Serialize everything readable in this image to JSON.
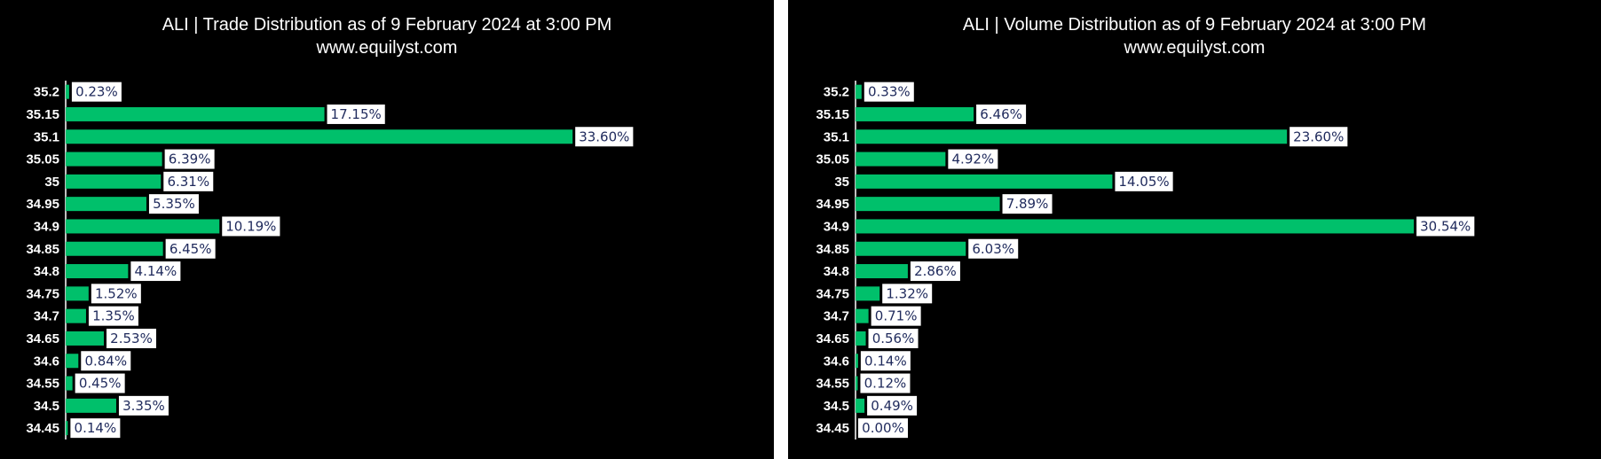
{
  "style": {
    "background": "#000000",
    "page_background": "#ffffff",
    "bar_color": "#00c06b",
    "axis_color": "#ffffff",
    "label_box": "#ffffff",
    "label_text": "#1f2a5c",
    "text_color": "#ffffff"
  },
  "chart_data": [
    {
      "type": "bar",
      "orientation": "horizontal",
      "title": "ALI | Trade Distribution as of 9 February 2024 at 3:00 PM",
      "subtitle": "www.equilyst.com",
      "categories": [
        "35.2",
        "35.15",
        "35.1",
        "35.05",
        "35",
        "34.95",
        "34.9",
        "34.85",
        "34.8",
        "34.75",
        "34.7",
        "34.65",
        "34.6",
        "34.55",
        "34.5",
        "34.45"
      ],
      "values": [
        0.23,
        17.15,
        33.6,
        6.39,
        6.31,
        5.35,
        10.19,
        6.45,
        4.14,
        1.52,
        1.35,
        2.53,
        0.84,
        0.45,
        3.35,
        0.14
      ],
      "value_labels": [
        "0.23%",
        "17.15%",
        "33.60%",
        "6.39%",
        "6.31%",
        "5.35%",
        "10.19%",
        "6.45%",
        "4.14%",
        "1.52%",
        "1.35%",
        "2.53%",
        "0.84%",
        "0.45%",
        "3.35%",
        "0.14%"
      ],
      "grid": false,
      "legend": "none"
    },
    {
      "type": "bar",
      "orientation": "horizontal",
      "title": "ALI | Volume Distribution as of 9 February 2024 at 3:00 PM",
      "subtitle": "www.equilyst.com",
      "categories": [
        "35.2",
        "35.15",
        "35.1",
        "35.05",
        "35",
        "34.95",
        "34.9",
        "34.85",
        "34.8",
        "34.75",
        "34.7",
        "34.65",
        "34.6",
        "34.55",
        "34.5",
        "34.45"
      ],
      "values": [
        0.33,
        6.46,
        23.6,
        4.92,
        14.05,
        7.89,
        30.54,
        6.03,
        2.86,
        1.32,
        0.71,
        0.56,
        0.14,
        0.12,
        0.49,
        0.0
      ],
      "value_labels": [
        "0.33%",
        "6.46%",
        "23.60%",
        "4.92%",
        "14.05%",
        "7.89%",
        "30.54%",
        "6.03%",
        "2.86%",
        "1.32%",
        "0.71%",
        "0.56%",
        "0.14%",
        "0.12%",
        "0.49%",
        "0.00%"
      ],
      "grid": false,
      "legend": "none"
    }
  ]
}
